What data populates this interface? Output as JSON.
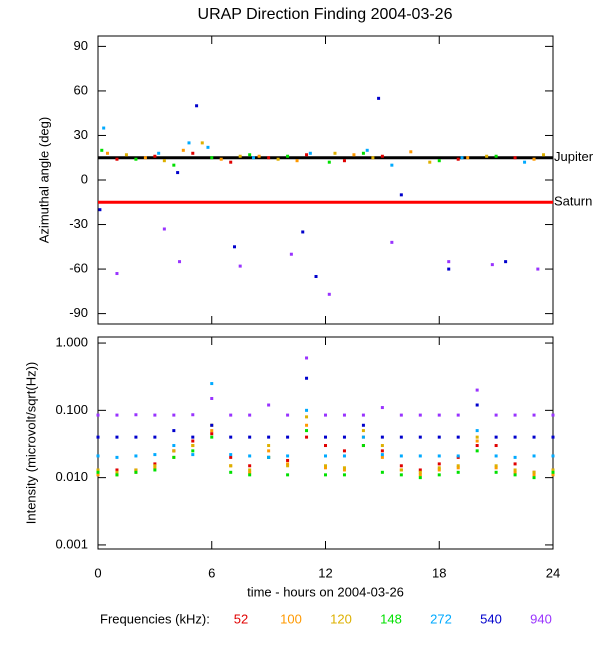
{
  "chart_data": [
    {
      "type": "scatter",
      "title": "URAP Direction Finding  2004-03-26",
      "ylabel": "Azimuthal angle (deg)",
      "xlim": [
        0,
        24
      ],
      "xticks": [
        0,
        6,
        12,
        18,
        24
      ],
      "ylim": [
        -97,
        97
      ],
      "yticks": [
        90,
        60,
        30,
        0,
        -30,
        -60,
        -90
      ],
      "log_y": false,
      "reference_lines": [
        {
          "name": "Jupiter",
          "value": 15,
          "color": "#000000"
        },
        {
          "name": "Saturn",
          "value": -15,
          "color": "#ff0000"
        }
      ],
      "series": [
        {
          "name": "52",
          "color": "#e00000",
          "x": [
            1,
            3,
            5,
            7,
            9,
            11,
            13,
            15,
            19,
            22
          ],
          "values": [
            14,
            16,
            18,
            12,
            15,
            17,
            13,
            16,
            14,
            15
          ]
        },
        {
          "name": "100",
          "color": "#ff9900",
          "x": [
            0.5,
            2.5,
            4.5,
            6.5,
            8.5,
            10.5,
            13.5,
            16.5,
            19.5,
            23
          ],
          "values": [
            18,
            15,
            20,
            14,
            16,
            13,
            17,
            19,
            15,
            14
          ]
        },
        {
          "name": "120",
          "color": "#ddb000",
          "x": [
            1.5,
            3.5,
            5.5,
            7.5,
            9.5,
            12.5,
            14.5,
            17.5,
            20.5,
            23.5
          ],
          "values": [
            17,
            13,
            25,
            16,
            14,
            18,
            15,
            12,
            16,
            17
          ]
        },
        {
          "name": "148",
          "color": "#00e000",
          "x": [
            0.2,
            2,
            4,
            6,
            8,
            10,
            12.2,
            14,
            18,
            21
          ],
          "values": [
            20,
            14,
            10,
            15,
            17,
            16,
            12,
            18,
            13,
            16
          ]
        },
        {
          "name": "272",
          "color": "#00aaff",
          "x": [
            0.3,
            3.2,
            4.8,
            5.8,
            8.2,
            11.2,
            14.2,
            15.5,
            19.2,
            22.5
          ],
          "values": [
            35,
            18,
            25,
            22,
            15,
            18,
            20,
            10,
            15,
            12
          ]
        },
        {
          "name": "540",
          "color": "#0000cc",
          "x": [
            0.1,
            4.2,
            5.2,
            7.2,
            10.8,
            11.5,
            14.8,
            16,
            18.5,
            21.5
          ],
          "values": [
            -20,
            5,
            50,
            -45,
            -35,
            -65,
            55,
            -10,
            -60,
            -55
          ]
        },
        {
          "name": "940",
          "color": "#9933ff",
          "x": [
            1,
            3.5,
            4.3,
            7.5,
            10.2,
            12.2,
            15.5,
            18.5,
            20.8,
            23.2
          ],
          "values": [
            -63,
            -33,
            -55,
            -58,
            -50,
            -77,
            -42,
            -55,
            -57,
            -60
          ]
        }
      ]
    },
    {
      "type": "scatter",
      "ylabel": "Intensity (microvolt/sqrt(Hz))",
      "xlabel": "time - hours on 2004-03-26",
      "legend_title": "Frequencies (kHz):",
      "xlim": [
        0,
        24
      ],
      "xticks": [
        0,
        6,
        12,
        18,
        24
      ],
      "ylim": [
        0.00087,
        1.23
      ],
      "yticks": [
        {
          "value": 1,
          "label": "1.000"
        },
        {
          "value": 0.1,
          "label": "0.100"
        },
        {
          "value": 0.01,
          "label": "0.010"
        },
        0.001
      ],
      "log_y": true,
      "x": [
        0,
        1,
        2,
        3,
        4,
        5,
        6,
        7,
        8,
        9,
        10,
        11,
        12,
        13,
        14,
        15,
        16,
        17,
        18,
        19,
        20,
        21,
        22,
        23,
        24
      ],
      "series": [
        {
          "name": "52",
          "color": "#e00000",
          "values": [
            0.012,
            0.013,
            0.013,
            0.016,
            0.025,
            0.035,
            0.045,
            0.02,
            0.015,
            0.02,
            0.018,
            0.04,
            0.03,
            0.025,
            0.03,
            0.025,
            0.015,
            0.013,
            0.016,
            0.02,
            0.03,
            0.03,
            0.016,
            0.012,
            0.013
          ]
        },
        {
          "name": "100",
          "color": "#ff9900",
          "values": [
            0.011,
            0.011,
            0.012,
            0.014,
            0.02,
            0.03,
            0.05,
            0.015,
            0.012,
            0.025,
            0.016,
            0.06,
            0.014,
            0.013,
            0.04,
            0.02,
            0.013,
            0.011,
            0.013,
            0.014,
            0.035,
            0.014,
            0.012,
            0.011,
            0.011
          ]
        },
        {
          "name": "120",
          "color": "#ddb000",
          "values": [
            0.013,
            0.012,
            0.013,
            0.015,
            0.025,
            0.03,
            0.06,
            0.015,
            0.013,
            0.03,
            0.015,
            0.08,
            0.015,
            0.014,
            0.05,
            0.03,
            0.013,
            0.012,
            0.014,
            0.015,
            0.04,
            0.015,
            0.013,
            0.012,
            0.013
          ]
        },
        {
          "name": "148",
          "color": "#00e000",
          "values": [
            0.012,
            0.011,
            0.012,
            0.013,
            0.02,
            0.025,
            0.04,
            0.012,
            0.011,
            0.02,
            0.011,
            0.05,
            0.011,
            0.011,
            0.03,
            0.012,
            0.011,
            0.01,
            0.011,
            0.012,
            0.025,
            0.012,
            0.011,
            0.01,
            0.012
          ]
        },
        {
          "name": "272",
          "color": "#00aaff",
          "values": [
            0.021,
            0.02,
            0.021,
            0.022,
            0.03,
            0.022,
            0.25,
            0.022,
            0.021,
            0.02,
            0.021,
            0.1,
            0.021,
            0.021,
            0.04,
            0.022,
            0.021,
            0.021,
            0.021,
            0.021,
            0.05,
            0.021,
            0.02,
            0.021,
            0.021
          ]
        },
        {
          "name": "540",
          "color": "#0000cc",
          "values": [
            0.04,
            0.04,
            0.04,
            0.04,
            0.05,
            0.04,
            0.06,
            0.04,
            0.04,
            0.04,
            0.04,
            0.3,
            0.04,
            0.04,
            0.06,
            0.04,
            0.04,
            0.04,
            0.04,
            0.04,
            0.12,
            0.04,
            0.04,
            0.04,
            0.04
          ]
        },
        {
          "name": "940",
          "color": "#9933ff",
          "values": [
            0.085,
            0.085,
            0.086,
            0.085,
            0.085,
            0.086,
            0.15,
            0.085,
            0.085,
            0.12,
            0.085,
            0.6,
            0.085,
            0.085,
            0.085,
            0.11,
            0.085,
            0.085,
            0.085,
            0.085,
            0.2,
            0.085,
            0.085,
            0.085,
            0.085
          ]
        }
      ]
    }
  ]
}
